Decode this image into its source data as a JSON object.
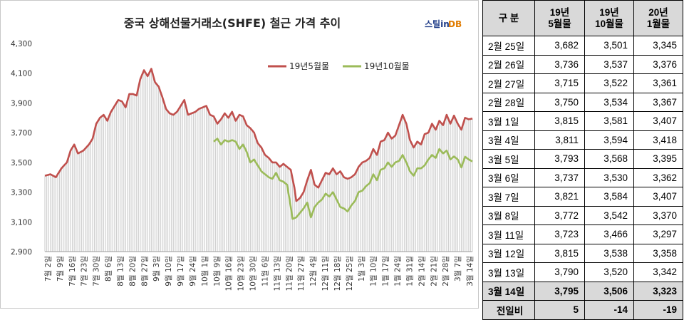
{
  "chart_data": {
    "type": "line",
    "title": "중국 상해선물거래소(SHFE)  철근 가격 추이",
    "logo": {
      "main": "스틸in",
      "accent": "DB"
    },
    "ylim": [
      2900,
      4300
    ],
    "yticks": [
      "2,900",
      "3,100",
      "3,300",
      "3,500",
      "3,700",
      "3,900",
      "4,100",
      "4,300"
    ],
    "ytick_values": [
      2900,
      3100,
      3300,
      3500,
      3700,
      3900,
      4100,
      4300
    ],
    "x_labels": [
      "7월 2일",
      "7월 9일",
      "7월 16일",
      "7월 23일",
      "7월 30일",
      "8월 6일",
      "8월 13일",
      "8월 20일",
      "8월 27일",
      "9월 3일",
      "9월 10일",
      "9월 17일",
      "9월 24일",
      "10월 1일",
      "10월 9일",
      "10월 16일",
      "10월 23일",
      "10월 30일",
      "11월 6일",
      "11월 13일",
      "11월 20일",
      "11월 27일",
      "12월 4일",
      "12월 11일",
      "12월 18일",
      "12월 25일",
      "1월 3일",
      "1월 10일",
      "1월 17일",
      "1월 24일",
      "1월 31일",
      "2월 14일",
      "2월 21일",
      "2월 28일",
      "3월 7일",
      "3월 14일"
    ],
    "n_points": 160,
    "series": [
      {
        "name": "19년5월물",
        "color": "#c0504d",
        "start_index": 0,
        "anchors": [
          [
            0,
            3410
          ],
          [
            3,
            3420
          ],
          [
            6,
            3400
          ],
          [
            9,
            3460
          ],
          [
            12,
            3500
          ],
          [
            14,
            3580
          ],
          [
            16,
            3620
          ],
          [
            18,
            3560
          ],
          [
            21,
            3580
          ],
          [
            24,
            3620
          ],
          [
            26,
            3660
          ],
          [
            28,
            3760
          ],
          [
            30,
            3800
          ],
          [
            32,
            3820
          ],
          [
            34,
            3780
          ],
          [
            36,
            3840
          ],
          [
            38,
            3880
          ],
          [
            40,
            3920
          ],
          [
            42,
            3910
          ],
          [
            44,
            3870
          ],
          [
            46,
            3960
          ],
          [
            48,
            3960
          ],
          [
            50,
            3950
          ],
          [
            52,
            4060
          ],
          [
            54,
            4120
          ],
          [
            56,
            4080
          ],
          [
            58,
            4130
          ],
          [
            60,
            4040
          ],
          [
            62,
            4010
          ],
          [
            64,
            3940
          ],
          [
            66,
            3860
          ],
          [
            68,
            3830
          ],
          [
            70,
            3820
          ],
          [
            72,
            3840
          ],
          [
            74,
            3880
          ],
          [
            76,
            3920
          ],
          [
            78,
            3820
          ],
          [
            80,
            3830
          ],
          [
            82,
            3840
          ],
          [
            84,
            3860
          ],
          [
            86,
            3870
          ],
          [
            88,
            3880
          ],
          [
            90,
            3820
          ],
          [
            92,
            3810
          ],
          [
            94,
            3760
          ],
          [
            96,
            3790
          ],
          [
            98,
            3830
          ],
          [
            100,
            3800
          ],
          [
            102,
            3840
          ],
          [
            104,
            3780
          ],
          [
            106,
            3820
          ],
          [
            108,
            3810
          ],
          [
            110,
            3750
          ],
          [
            112,
            3730
          ],
          [
            114,
            3700
          ],
          [
            116,
            3630
          ],
          [
            118,
            3600
          ],
          [
            120,
            3550
          ],
          [
            122,
            3530
          ],
          [
            124,
            3500
          ],
          [
            126,
            3500
          ],
          [
            128,
            3470
          ],
          [
            130,
            3490
          ],
          [
            132,
            3470
          ],
          [
            134,
            3450
          ],
          [
            136,
            3330
          ],
          [
            137,
            3240
          ],
          [
            139,
            3260
          ],
          [
            141,
            3300
          ],
          [
            143,
            3380
          ],
          [
            145,
            3450
          ],
          [
            146,
            3400
          ],
          [
            147,
            3350
          ],
          [
            149,
            3330
          ],
          [
            151,
            3380
          ],
          [
            153,
            3430
          ],
          [
            155,
            3420
          ],
          [
            157,
            3460
          ],
          [
            159,
            3420
          ],
          [
            161,
            3440
          ],
          [
            163,
            3400
          ],
          [
            165,
            3390
          ],
          [
            167,
            3400
          ],
          [
            169,
            3420
          ],
          [
            171,
            3470
          ],
          [
            173,
            3500
          ],
          [
            175,
            3510
          ],
          [
            177,
            3530
          ],
          [
            179,
            3590
          ],
          [
            181,
            3550
          ],
          [
            183,
            3640
          ],
          [
            185,
            3650
          ],
          [
            187,
            3700
          ],
          [
            189,
            3660
          ],
          [
            191,
            3680
          ],
          [
            193,
            3750
          ],
          [
            195,
            3820
          ],
          [
            197,
            3760
          ],
          [
            199,
            3650
          ],
          [
            201,
            3600
          ],
          [
            203,
            3640
          ],
          [
            205,
            3620
          ],
          [
            207,
            3690
          ],
          [
            209,
            3700
          ],
          [
            211,
            3760
          ],
          [
            213,
            3720
          ],
          [
            215,
            3780
          ],
          [
            217,
            3750
          ],
          [
            219,
            3820
          ],
          [
            221,
            3760
          ],
          [
            223,
            3815
          ],
          [
            225,
            3760
          ],
          [
            227,
            3720
          ],
          [
            229,
            3800
          ],
          [
            231,
            3790
          ],
          [
            233,
            3795
          ]
        ]
      },
      {
        "name": "19년10월물",
        "color": "#9bbb59",
        "anchors": [
          [
            92,
            3640
          ],
          [
            94,
            3660
          ],
          [
            96,
            3620
          ],
          [
            98,
            3650
          ],
          [
            100,
            3640
          ],
          [
            102,
            3650
          ],
          [
            104,
            3640
          ],
          [
            106,
            3590
          ],
          [
            108,
            3620
          ],
          [
            110,
            3570
          ],
          [
            112,
            3500
          ],
          [
            114,
            3520
          ],
          [
            116,
            3480
          ],
          [
            118,
            3440
          ],
          [
            120,
            3420
          ],
          [
            122,
            3400
          ],
          [
            124,
            3390
          ],
          [
            126,
            3430
          ],
          [
            128,
            3380
          ],
          [
            130,
            3370
          ],
          [
            132,
            3350
          ],
          [
            134,
            3200
          ],
          [
            135,
            3120
          ],
          [
            137,
            3130
          ],
          [
            139,
            3160
          ],
          [
            141,
            3190
          ],
          [
            143,
            3230
          ],
          [
            145,
            3130
          ],
          [
            147,
            3200
          ],
          [
            149,
            3230
          ],
          [
            151,
            3250
          ],
          [
            153,
            3290
          ],
          [
            155,
            3270
          ],
          [
            157,
            3300
          ],
          [
            159,
            3250
          ],
          [
            161,
            3200
          ],
          [
            163,
            3190
          ],
          [
            165,
            3170
          ],
          [
            167,
            3210
          ],
          [
            169,
            3240
          ],
          [
            171,
            3300
          ],
          [
            173,
            3310
          ],
          [
            175,
            3340
          ],
          [
            177,
            3360
          ],
          [
            179,
            3420
          ],
          [
            181,
            3380
          ],
          [
            183,
            3450
          ],
          [
            185,
            3460
          ],
          [
            187,
            3500
          ],
          [
            189,
            3470
          ],
          [
            191,
            3500
          ],
          [
            193,
            3510
          ],
          [
            195,
            3550
          ],
          [
            197,
            3500
          ],
          [
            199,
            3440
          ],
          [
            201,
            3410
          ],
          [
            203,
            3460
          ],
          [
            205,
            3460
          ],
          [
            207,
            3480
          ],
          [
            209,
            3520
          ],
          [
            211,
            3550
          ],
          [
            213,
            3530
          ],
          [
            215,
            3590
          ],
          [
            217,
            3560
          ],
          [
            219,
            3580
          ],
          [
            221,
            3520
          ],
          [
            223,
            3540
          ],
          [
            225,
            3520
          ],
          [
            227,
            3466
          ],
          [
            229,
            3538
          ],
          [
            231,
            3520
          ],
          [
            233,
            3506
          ]
        ]
      }
    ],
    "legend_position": "top-center"
  },
  "table": {
    "headers": [
      [
        "구  분"
      ],
      [
        "19년",
        "5월물"
      ],
      [
        "19년",
        "10월물"
      ],
      [
        "20년",
        "1월물"
      ]
    ],
    "rows": [
      {
        "date": "2월 25일",
        "v1": "3,682",
        "v2": "3,501",
        "v3": "3,345"
      },
      {
        "date": "2월 26일",
        "v1": "3,736",
        "v2": "3,537",
        "v3": "3,376"
      },
      {
        "date": "2월 27일",
        "v1": "3,715",
        "v2": "3,522",
        "v3": "3,361"
      },
      {
        "date": "2월 28일",
        "v1": "3,750",
        "v2": "3,534",
        "v3": "3,367"
      },
      {
        "date": "3월  1일",
        "v1": "3,815",
        "v2": "3,581",
        "v3": "3,407"
      },
      {
        "date": "3월  4일",
        "v1": "3,811",
        "v2": "3,594",
        "v3": "3,418"
      },
      {
        "date": "3월  5일",
        "v1": "3,793",
        "v2": "3,568",
        "v3": "3,395"
      },
      {
        "date": "3월  6일",
        "v1": "3,737",
        "v2": "3,530",
        "v3": "3,362"
      },
      {
        "date": "3월  7일",
        "v1": "3,821",
        "v2": "3,584",
        "v3": "3,407"
      },
      {
        "date": "3월  8일",
        "v1": "3,772",
        "v2": "3,542",
        "v3": "3,370"
      },
      {
        "date": "3월 11일",
        "v1": "3,723",
        "v2": "3,466",
        "v3": "3,297"
      },
      {
        "date": "3월 12일",
        "v1": "3,815",
        "v2": "3,538",
        "v3": "3,358"
      },
      {
        "date": "3월 13일",
        "v1": "3,790",
        "v2": "3,520",
        "v3": "3,342"
      }
    ],
    "highlight_row": {
      "date": "3월 14일",
      "v1": "3,795",
      "v2": "3,506",
      "v3": "3,323"
    },
    "diff_row": {
      "label": "전일비",
      "v1": "5",
      "v2": "-14",
      "v3": "-19"
    }
  }
}
